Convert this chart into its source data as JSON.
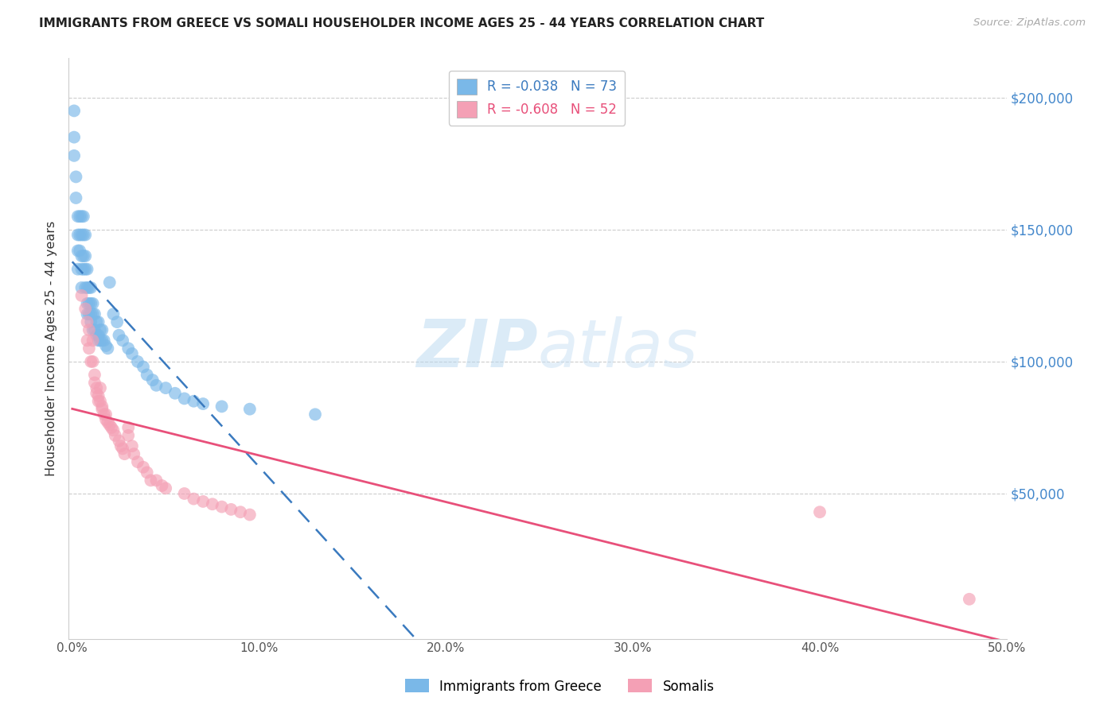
{
  "title": "IMMIGRANTS FROM GREECE VS SOMALI HOUSEHOLDER INCOME AGES 25 - 44 YEARS CORRELATION CHART",
  "source": "Source: ZipAtlas.com",
  "ylabel": "Householder Income Ages 25 - 44 years",
  "xlabel_ticks": [
    "0.0%",
    "10.0%",
    "20.0%",
    "30.0%",
    "40.0%",
    "50.0%"
  ],
  "xlabel_vals": [
    0.0,
    0.1,
    0.2,
    0.3,
    0.4,
    0.5
  ],
  "ylabel_ticks": [
    "$50,000",
    "$100,000",
    "$150,000",
    "$200,000"
  ],
  "ylabel_vals": [
    50000,
    100000,
    150000,
    200000
  ],
  "ylim": [
    -5000,
    215000
  ],
  "xlim": [
    -0.002,
    0.5
  ],
  "greece_R": -0.038,
  "greece_N": 73,
  "somali_R": -0.608,
  "somali_N": 52,
  "greece_color": "#7ab8e8",
  "somali_color": "#f4a0b5",
  "greece_line_color": "#3a7abf",
  "somali_line_color": "#e8507a",
  "legend_label_greece": "Immigrants from Greece",
  "legend_label_somali": "Somalis",
  "watermark_zip": "ZIP",
  "watermark_atlas": "atlas",
  "greece_x": [
    0.001,
    0.001,
    0.001,
    0.002,
    0.002,
    0.003,
    0.003,
    0.003,
    0.003,
    0.004,
    0.004,
    0.004,
    0.005,
    0.005,
    0.005,
    0.005,
    0.005,
    0.006,
    0.006,
    0.006,
    0.006,
    0.007,
    0.007,
    0.007,
    0.007,
    0.008,
    0.008,
    0.008,
    0.008,
    0.009,
    0.009,
    0.009,
    0.01,
    0.01,
    0.01,
    0.01,
    0.011,
    0.011,
    0.011,
    0.012,
    0.012,
    0.013,
    0.013,
    0.014,
    0.014,
    0.014,
    0.015,
    0.015,
    0.016,
    0.016,
    0.017,
    0.018,
    0.019,
    0.02,
    0.022,
    0.024,
    0.025,
    0.027,
    0.03,
    0.032,
    0.035,
    0.038,
    0.04,
    0.043,
    0.045,
    0.05,
    0.055,
    0.06,
    0.065,
    0.07,
    0.08,
    0.095,
    0.13
  ],
  "greece_y": [
    195000,
    185000,
    178000,
    170000,
    162000,
    155000,
    148000,
    142000,
    135000,
    155000,
    148000,
    142000,
    155000,
    148000,
    140000,
    135000,
    128000,
    155000,
    148000,
    140000,
    135000,
    148000,
    140000,
    135000,
    128000,
    135000,
    128000,
    122000,
    118000,
    128000,
    122000,
    118000,
    128000,
    122000,
    118000,
    115000,
    122000,
    118000,
    112000,
    118000,
    112000,
    115000,
    110000,
    115000,
    110000,
    108000,
    112000,
    108000,
    112000,
    108000,
    108000,
    106000,
    105000,
    130000,
    118000,
    115000,
    110000,
    108000,
    105000,
    103000,
    100000,
    98000,
    95000,
    93000,
    91000,
    90000,
    88000,
    86000,
    85000,
    84000,
    83000,
    82000,
    80000
  ],
  "somali_x": [
    0.005,
    0.007,
    0.008,
    0.008,
    0.009,
    0.009,
    0.01,
    0.011,
    0.011,
    0.012,
    0.012,
    0.013,
    0.013,
    0.014,
    0.014,
    0.015,
    0.015,
    0.016,
    0.016,
    0.017,
    0.018,
    0.018,
    0.019,
    0.02,
    0.021,
    0.022,
    0.023,
    0.025,
    0.026,
    0.027,
    0.028,
    0.03,
    0.03,
    0.032,
    0.033,
    0.035,
    0.038,
    0.04,
    0.042,
    0.045,
    0.048,
    0.05,
    0.06,
    0.065,
    0.07,
    0.075,
    0.08,
    0.085,
    0.09,
    0.095,
    0.4,
    0.48
  ],
  "somali_y": [
    125000,
    120000,
    115000,
    108000,
    112000,
    105000,
    100000,
    108000,
    100000,
    95000,
    92000,
    90000,
    88000,
    87000,
    85000,
    90000,
    85000,
    83000,
    82000,
    80000,
    80000,
    78000,
    77000,
    76000,
    75000,
    74000,
    72000,
    70000,
    68000,
    67000,
    65000,
    75000,
    72000,
    68000,
    65000,
    62000,
    60000,
    58000,
    55000,
    55000,
    53000,
    52000,
    50000,
    48000,
    47000,
    46000,
    45000,
    44000,
    43000,
    42000,
    43000,
    10000
  ]
}
